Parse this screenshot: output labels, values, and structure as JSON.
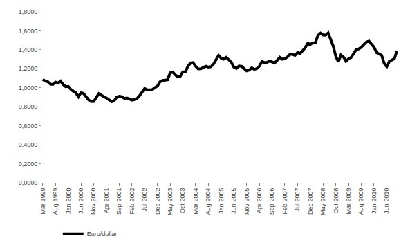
{
  "chart_data": {
    "type": "line",
    "categories": [
      "Mar 1999",
      null,
      null,
      null,
      null,
      "Aug 1999",
      null,
      null,
      null,
      null,
      "Jan 2000",
      null,
      null,
      null,
      null,
      "Jun 2000",
      null,
      null,
      null,
      null,
      "Nov 2000",
      null,
      null,
      null,
      null,
      "Apr 2001",
      null,
      null,
      null,
      null,
      "Sep 2001",
      null,
      null,
      null,
      null,
      "Feb 2002",
      null,
      null,
      null,
      null,
      "Jul 2002",
      null,
      null,
      null,
      null,
      "Dec 2002",
      null,
      null,
      null,
      null,
      "May 2003",
      null,
      null,
      null,
      null,
      "Oct 2003",
      null,
      null,
      null,
      null,
      "Mar 2004",
      null,
      null,
      null,
      null,
      "Aug 2004",
      null,
      null,
      null,
      null,
      "Jan 2005",
      null,
      null,
      null,
      null,
      "Jun 2005",
      null,
      null,
      null,
      null,
      "Nov 2005",
      null,
      null,
      null,
      null,
      "Apr 2006",
      null,
      null,
      null,
      null,
      "Sep 2006",
      null,
      null,
      null,
      null,
      "Feb 2007",
      null,
      null,
      null,
      null,
      "Jul 2007",
      null,
      null,
      null,
      null,
      "Dec 2007",
      null,
      null,
      null,
      null,
      "May 2008",
      null,
      null,
      null,
      null,
      "Oct 2008",
      null,
      null,
      null,
      null,
      "Mar 2009",
      null,
      null,
      null,
      null,
      "Aug 2009",
      null,
      null,
      null,
      null,
      "Jan 2010",
      null,
      null,
      null,
      null,
      "Jun 2010",
      null,
      null,
      null,
      null
    ],
    "series": [
      {
        "name": "Euro/dollar",
        "color": "#000000",
        "line_style": "solid",
        "values": [
          1.088,
          1.07,
          1.063,
          1.038,
          1.035,
          1.06,
          1.05,
          1.071,
          1.034,
          1.011,
          1.014,
          0.983,
          0.964,
          0.947,
          0.906,
          0.949,
          0.94,
          0.904,
          0.872,
          0.855,
          0.856,
          0.897,
          0.938,
          0.922,
          0.91,
          0.892,
          0.874,
          0.853,
          0.861,
          0.901,
          0.911,
          0.906,
          0.888,
          0.892,
          0.883,
          0.87,
          0.876,
          0.886,
          0.917,
          0.955,
          0.992,
          0.978,
          0.981,
          0.981,
          1.001,
          1.018,
          1.062,
          1.077,
          1.081,
          1.085,
          1.158,
          1.166,
          1.137,
          1.114,
          1.122,
          1.169,
          1.17,
          1.229,
          1.261,
          1.265,
          1.226,
          1.199,
          1.201,
          1.214,
          1.227,
          1.218,
          1.222,
          1.249,
          1.299,
          1.341,
          1.312,
          1.301,
          1.32,
          1.294,
          1.269,
          1.217,
          1.204,
          1.229,
          1.226,
          1.202,
          1.179,
          1.186,
          1.21,
          1.194,
          1.202,
          1.227,
          1.277,
          1.265,
          1.268,
          1.281,
          1.273,
          1.261,
          1.288,
          1.321,
          1.3,
          1.307,
          1.324,
          1.352,
          1.351,
          1.342,
          1.372,
          1.362,
          1.39,
          1.423,
          1.468,
          1.457,
          1.472,
          1.475,
          1.553,
          1.575,
          1.556,
          1.555,
          1.577,
          1.498,
          1.437,
          1.332,
          1.273,
          1.345,
          1.324,
          1.279,
          1.305,
          1.319,
          1.365,
          1.402,
          1.409,
          1.427,
          1.456,
          1.482,
          1.491,
          1.461,
          1.427,
          1.369,
          1.357,
          1.341,
          1.257,
          1.221,
          1.277,
          1.289,
          1.307,
          1.39
        ]
      }
    ],
    "ylim": [
      0,
      1.8
    ],
    "yticks": [
      {
        "value": 0,
        "label": "0,0000"
      },
      {
        "value": 0.2,
        "label": "0,2000"
      },
      {
        "value": 0.4,
        "label": "0,4000"
      },
      {
        "value": 0.6,
        "label": "0,6000"
      },
      {
        "value": 0.8,
        "label": "0,8000"
      },
      {
        "value": 1.0,
        "label": "1,0000"
      },
      {
        "value": 1.2,
        "label": "1,2000"
      },
      {
        "value": 1.4,
        "label": "1,4000"
      },
      {
        "value": 1.6,
        "label": "1,6000"
      },
      {
        "value": 1.8,
        "label": "1,8000"
      }
    ],
    "grid": false,
    "legend": "bottom"
  }
}
